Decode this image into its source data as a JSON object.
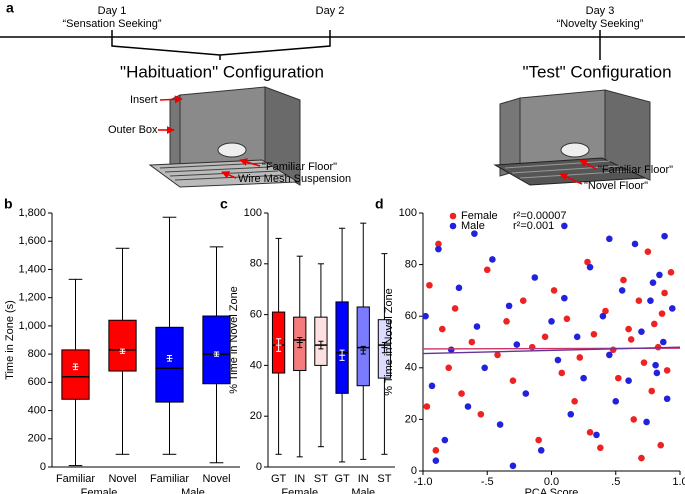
{
  "panel_a": {
    "label": "a",
    "day1": "Day 1",
    "day1_caption": "“Sensation Seeking”",
    "day2": "Day 2",
    "day3": "Day 3",
    "day3_caption": "“Novelty Seeking”",
    "habituation_title": "\"Habituation\" Configuration",
    "test_title": "\"Test\" Configuration",
    "insert": "Insert",
    "outer_box": "Outer Box",
    "familiar_floor_1": "\"Familiar Floor\"",
    "wire_mesh": "Wire Mesh Suspension",
    "familiar_floor_2": "\"Familiar Floor\"",
    "novel_floor": "\"Novel Floor\""
  },
  "chart_data": [
    {
      "type": "box",
      "panel_label": "b",
      "ylabel": "Time in Zone (s)",
      "categories": [
        "Familiar",
        "Novel",
        "Familiar",
        "Novel"
      ],
      "groups": [
        "Female",
        "Male"
      ],
      "colors": [
        "#ff0000",
        "#ff0000",
        "#0000ff",
        "#0000ff"
      ],
      "boxes": [
        {
          "min": 10,
          "q1": 480,
          "median": 640,
          "q3": 830,
          "max": 1330,
          "mean": 710,
          "sem": 20
        },
        {
          "min": 90,
          "q1": 680,
          "median": 830,
          "q3": 1040,
          "max": 1550,
          "mean": 820,
          "sem": 15
        },
        {
          "min": 90,
          "q1": 460,
          "median": 700,
          "q3": 990,
          "max": 1770,
          "mean": 770,
          "sem": 20
        },
        {
          "min": 30,
          "q1": 590,
          "median": 800,
          "q3": 1070,
          "max": 1560,
          "mean": 800,
          "sem": 15
        }
      ],
      "ylim": [
        0,
        1800
      ],
      "yticks": [
        0,
        200,
        400,
        600,
        800,
        {
          "value": 1000,
          "label": "1,000"
        },
        {
          "value": 1200,
          "label": "1,200"
        },
        {
          "value": 1400,
          "label": "1,400"
        },
        {
          "value": 1600,
          "label": "1,600"
        },
        {
          "value": 1800,
          "label": "1,800"
        }
      ]
    },
    {
      "type": "box",
      "panel_label": "c",
      "ylabel": "% Time in Novel Zone",
      "categories": [
        "GT",
        "IN",
        "ST",
        "GT",
        "IN",
        "ST"
      ],
      "groups": [
        "Female",
        "Male"
      ],
      "colors": [
        "#ff0000",
        "#f47c7c",
        "#fde0e0",
        "#0000ff",
        "#7b7bff",
        "#dcdcff"
      ],
      "boxes": [
        {
          "min": 5,
          "q1": 37,
          "median": 48,
          "q3": 61,
          "max": 90,
          "mean": 48,
          "sem": 2.5
        },
        {
          "min": 4,
          "q1": 38,
          "median": 50,
          "q3": 59,
          "max": 83,
          "mean": 49,
          "sem": 2
        },
        {
          "min": 8,
          "q1": 40,
          "median": 48,
          "q3": 59,
          "max": 80,
          "mean": 48,
          "sem": 1.5
        },
        {
          "min": 2,
          "q1": 29,
          "median": 45,
          "q3": 65,
          "max": 94,
          "mean": 44,
          "sem": 2
        },
        {
          "min": 3,
          "q1": 32,
          "median": 47,
          "q3": 63,
          "max": 96,
          "mean": 46,
          "sem": 1.5
        },
        {
          "min": 5,
          "q1": 35,
          "median": 48,
          "q3": 58,
          "max": 84,
          "mean": 47,
          "sem": 2
        }
      ],
      "ylim": [
        0,
        100
      ],
      "yticks": [
        0,
        20,
        40,
        60,
        80,
        100
      ]
    },
    {
      "type": "scatter",
      "panel_label": "d",
      "xlabel": "PCA Score",
      "ylabel": "% Time in Novel Zone",
      "legend": "top-left",
      "xlim": [
        -1,
        1
      ],
      "xticks": [
        {
          "value": -1,
          "label": "-1.0"
        },
        {
          "value": -0.5,
          "label": "-.5"
        },
        {
          "value": 0,
          "label": "0.0"
        },
        {
          "value": 0.5,
          "label": ".5"
        },
        {
          "value": 1,
          "label": "1.0"
        }
      ],
      "ylim": [
        0,
        100
      ],
      "yticks": [
        0,
        20,
        40,
        60,
        80,
        100
      ],
      "series": [
        {
          "name": "Female",
          "r2_label": "r²=0.00007",
          "color": "#ee2222",
          "fit_color": "#cc3366",
          "fit": [
            47.3,
            47.6
          ],
          "x": [
            -0.95,
            -0.9,
            -0.85,
            -0.8,
            -0.75,
            -0.7,
            -0.62,
            -0.55,
            -0.5,
            -0.42,
            -0.35,
            -0.3,
            -0.22,
            -0.15,
            -0.1,
            -0.05,
            0.02,
            0.08,
            0.12,
            0.18,
            0.22,
            0.28,
            0.33,
            0.38,
            0.42,
            0.48,
            0.52,
            0.56,
            0.6,
            0.64,
            0.68,
            0.72,
            0.75,
            0.78,
            0.8,
            0.83,
            0.85,
            0.88,
            0.9,
            0.93,
            -0.97,
            -0.88,
            0.3,
            0.62,
            0.7,
            0.86
          ],
          "values": [
            72,
            8,
            55,
            40,
            63,
            30,
            50,
            22,
            78,
            45,
            58,
            35,
            66,
            48,
            12,
            52,
            70,
            38,
            59,
            27,
            44,
            81,
            53,
            9,
            62,
            47,
            36,
            74,
            55,
            20,
            66,
            42,
            85,
            31,
            57,
            48,
            10,
            69,
            39,
            77,
            25,
            88,
            15,
            51,
            5,
            61
          ]
        },
        {
          "name": "Male",
          "r2_label": "r²=0.001",
          "color": "#2222dd",
          "fit_color": "#663399",
          "fit": [
            45.5,
            48
          ],
          "x": [
            -0.98,
            -0.93,
            -0.88,
            -0.83,
            -0.78,
            -0.72,
            -0.65,
            -0.58,
            -0.52,
            -0.46,
            -0.4,
            -0.33,
            -0.27,
            -0.2,
            -0.13,
            -0.08,
            0.0,
            0.05,
            0.1,
            0.15,
            0.2,
            0.25,
            0.3,
            0.35,
            0.4,
            0.45,
            0.5,
            0.55,
            0.6,
            0.65,
            0.7,
            0.74,
            0.77,
            0.81,
            0.84,
            0.87,
            0.9,
            0.94,
            -0.9,
            -0.6,
            -0.3,
            0.1,
            0.45,
            0.82,
            0.88,
            0.79
          ],
          "values": [
            60,
            33,
            86,
            12,
            47,
            71,
            25,
            56,
            40,
            82,
            18,
            64,
            49,
            30,
            75,
            8,
            58,
            43,
            67,
            22,
            52,
            36,
            79,
            14,
            60,
            45,
            27,
            70,
            35,
            88,
            54,
            19,
            66,
            41,
            76,
            50,
            28,
            63,
            4,
            92,
            2,
            95,
            90,
            38,
            91,
            73
          ]
        }
      ]
    }
  ]
}
